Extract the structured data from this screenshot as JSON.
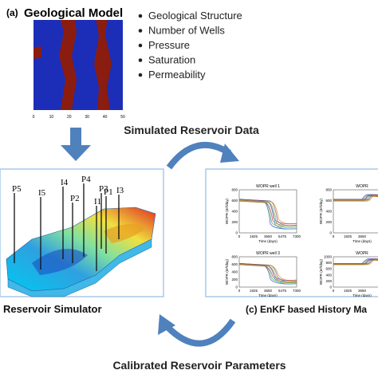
{
  "panel_a": {
    "tag": "(a)",
    "title": "Geological Model",
    "x_ticks": [
      0,
      10,
      20,
      30,
      40,
      50
    ],
    "bullets": [
      "Geological Structure",
      "Number of Wells",
      "Pressure",
      "Saturation",
      "Permeability"
    ]
  },
  "top_arrow_label": "Simulated Reservoir Data",
  "panel_b": {
    "title": "Reservoir Simulator",
    "wells": [
      "P5",
      "I5",
      "I4",
      "P4",
      "P2",
      "P3",
      "I1",
      "P1",
      "I3"
    ]
  },
  "panel_c": {
    "title": "(c) EnKF based History Ma",
    "plots": [
      {
        "title": "WOPR  well 1",
        "y_label": "WOPR (m³/day)",
        "x_label": "Time (days)",
        "x_ticks": [
          0,
          1825,
          3650,
          5475,
          7300
        ],
        "y_ticks": [
          0,
          200,
          400,
          600,
          800
        ]
      },
      {
        "title": "WOPR",
        "y_label": "WOPR (m³/day)",
        "x_label": "Time (days)",
        "x_ticks": [
          0,
          1825,
          3650
        ],
        "y_ticks": [
          0,
          200,
          400,
          600,
          800
        ]
      },
      {
        "title": "WOPR  well 3",
        "y_label": "WOPR (m³/day)",
        "x_label": "Time (days)",
        "x_ticks": [
          0,
          1825,
          3650,
          5475,
          7300
        ],
        "y_ticks": [
          0,
          200,
          400,
          600,
          800
        ]
      },
      {
        "title": "WOPR",
        "y_label": "WOPR (m³/day)",
        "x_label": "Time (days)",
        "x_ticks": [
          0,
          1825,
          3650
        ],
        "y_ticks": [
          0,
          200,
          400,
          600,
          800,
          1000
        ]
      }
    ]
  },
  "bottom_arrow_label": "Calibrated Reservoir Parameters"
}
